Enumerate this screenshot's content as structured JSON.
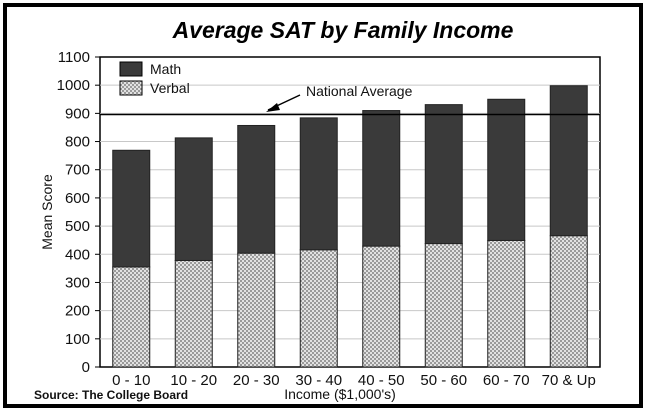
{
  "chart_data": {
    "type": "bar",
    "stacked": true,
    "title": "Average SAT by Family Income",
    "xlabel": "Income ($1,000's)",
    "ylabel": "Mean Score",
    "ylim": [
      0,
      1100
    ],
    "yticks": [
      0,
      100,
      200,
      300,
      400,
      500,
      600,
      700,
      800,
      900,
      1000,
      1100
    ],
    "categories": [
      "0 - 10",
      "10 - 20",
      "20 - 30",
      "30 - 40",
      "40 - 50",
      "50 - 60",
      "60 - 70",
      "70 & Up"
    ],
    "series": [
      {
        "name": "Verbal",
        "values": [
          355,
          378,
          404,
          416,
          429,
          438,
          449,
          466
        ],
        "color": "#cfcfcf"
      },
      {
        "name": "Math",
        "values": [
          414,
          435,
          453,
          468,
          481,
          493,
          501,
          532
        ],
        "color": "#3a3a3a"
      }
    ],
    "totals": [
      769,
      813,
      857,
      884,
      910,
      931,
      950,
      998
    ],
    "reference_line": {
      "label": "National Average",
      "value": 896
    },
    "legend": {
      "position": "top-left",
      "order": [
        "Math",
        "Verbal"
      ]
    },
    "grid": true,
    "source": "Source:  The College Board"
  }
}
